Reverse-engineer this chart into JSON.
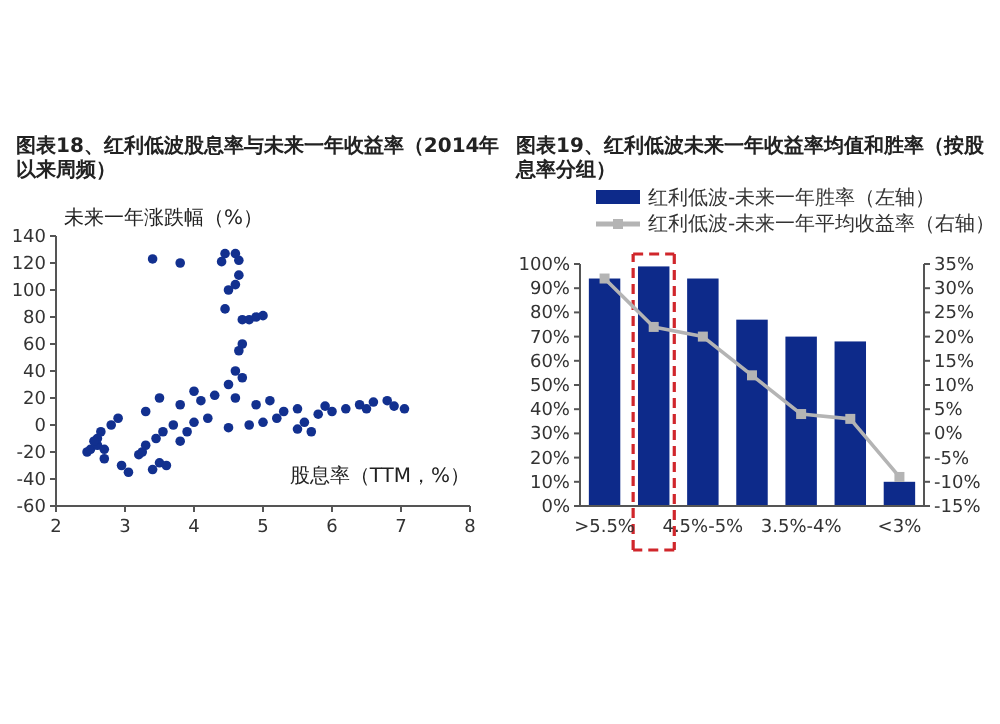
{
  "chart_data": [
    {
      "type": "scatter",
      "title": "图表18、红利低波股息率与未来一年收益率（2014年以来周频）",
      "xlabel": "股息率（TTM，%）",
      "ylabel": "未来一年涨跌幅（%）",
      "color": "#12308f",
      "marker": "circle",
      "grid": false,
      "x": [
        3.4,
        3.8,
        4.4,
        4.45,
        4.6,
        4.65,
        4.65,
        4.6,
        4.5,
        4.45,
        4.7,
        4.8,
        4.9,
        5.0,
        4.7,
        4.65,
        4.6,
        4.5,
        4.7,
        4.0,
        2.45,
        2.5,
        2.6,
        2.6,
        2.65,
        2.7,
        2.8,
        2.9,
        2.95,
        3.05,
        3.2,
        3.25,
        3.3,
        3.4,
        3.45,
        3.5,
        3.55,
        3.6,
        3.7,
        3.8,
        3.9,
        4.0,
        4.2,
        4.5,
        4.8,
        5.0,
        5.2,
        5.5,
        5.7,
        5.6,
        5.8,
        6.0,
        6.2,
        6.4,
        6.6,
        6.8,
        6.9,
        7.05,
        6.5,
        5.9,
        3.3,
        3.5,
        3.8,
        4.1,
        4.3,
        4.6,
        4.9,
        5.1,
        5.3,
        5.5,
        2.7,
        2.55
      ],
      "values": [
        123,
        120,
        121,
        127,
        127,
        122,
        111,
        104,
        100,
        86,
        78,
        78,
        80,
        81,
        60,
        55,
        40,
        30,
        35,
        25,
        -20,
        -18,
        -15,
        -10,
        -5,
        -25,
        0,
        5,
        -30,
        -35,
        -22,
        -20,
        -15,
        -33,
        -10,
        -28,
        -5,
        -30,
        0,
        -12,
        -5,
        2,
        5,
        -2,
        0,
        2,
        5,
        -3,
        -5,
        2,
        8,
        10,
        12,
        15,
        17,
        18,
        14,
        12,
        12,
        14,
        10,
        20,
        15,
        18,
        22,
        20,
        15,
        18,
        10,
        12,
        -18,
        -12
      ],
      "xlim": [
        2,
        8
      ],
      "xticks": [
        2,
        3,
        4,
        5,
        6,
        7,
        8
      ],
      "ylim": [
        -60,
        140
      ],
      "yticks": [
        -60,
        -40,
        -20,
        0,
        20,
        40,
        60,
        80,
        100,
        120,
        140
      ]
    },
    {
      "type": "bar",
      "title": "图表19、红利低波未来一年收益率均值和胜率（按股息率分组）",
      "grid": false,
      "legend": "top",
      "categories": [
        ">5.5%",
        null,
        "4.5%-5%",
        null,
        "3.5%-4%",
        null,
        "<3%"
      ],
      "series": [
        {
          "name": "红利低波-未来一年胜率（左轴）",
          "type": "bar",
          "color": "#0d2a8a",
          "values": [
            94,
            99,
            94,
            77,
            70,
            68,
            10
          ]
        },
        {
          "name": "红利低波-未来一年平均收益率（右轴）",
          "type": "line",
          "axis": "y2",
          "marker": "square",
          "color": "#b4b4b4",
          "values": [
            32,
            22,
            20,
            12,
            4,
            3,
            -9
          ]
        }
      ],
      "ylim": [
        0,
        100
      ],
      "yticks": [
        {
          "value": 0,
          "label": "0%"
        },
        {
          "value": 10,
          "label": "10%"
        },
        {
          "value": 20,
          "label": "20%"
        },
        {
          "value": 30,
          "label": "30%"
        },
        {
          "value": 40,
          "label": "40%"
        },
        {
          "value": 50,
          "label": "50%"
        },
        {
          "value": 60,
          "label": "60%"
        },
        {
          "value": 70,
          "label": "70%"
        },
        {
          "value": 80,
          "label": "80%"
        },
        {
          "value": 90,
          "label": "90%"
        },
        {
          "value": 100,
          "label": "100%"
        }
      ],
      "y2lim": [
        -15,
        35
      ],
      "y2ticks": [
        {
          "value": -15,
          "label": "-15%"
        },
        {
          "value": -10,
          "label": "-10%"
        },
        {
          "value": -5,
          "label": "-5%"
        },
        {
          "value": 0,
          "label": "0%"
        },
        {
          "value": 5,
          "label": "5%"
        },
        {
          "value": 10,
          "label": "10%"
        },
        {
          "value": 15,
          "label": "15%"
        },
        {
          "value": 20,
          "label": "20%"
        },
        {
          "value": 25,
          "label": "25%"
        },
        {
          "value": 30,
          "label": "30%"
        },
        {
          "value": 35,
          "label": "35%"
        }
      ]
    }
  ]
}
